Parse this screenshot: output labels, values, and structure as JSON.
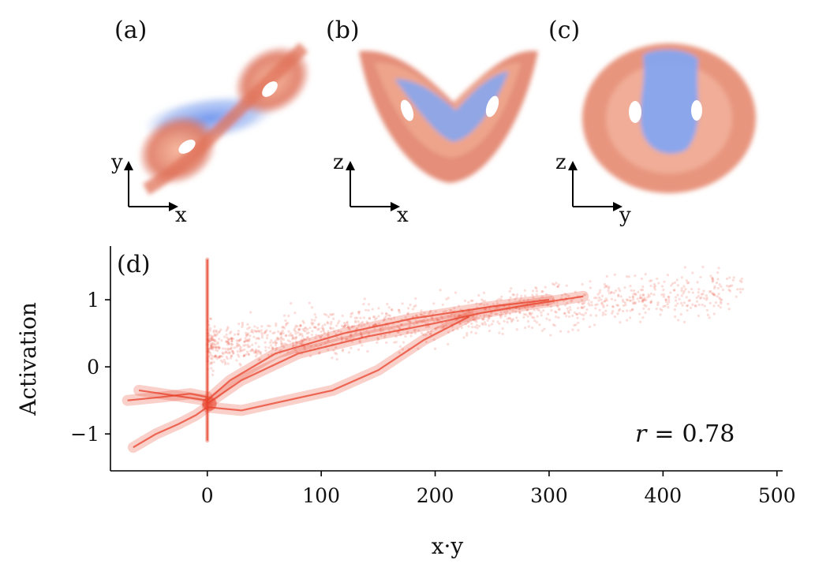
{
  "chart_data": [
    {
      "type": "scatter",
      "panel": "(a)",
      "title": "",
      "axes_arrows": {
        "horizontal": "x",
        "vertical": "y"
      },
      "colormap": "coolwarm (blue = low activation, red = high activation)",
      "description_of_marks": "Lorenz attractor projected on x-y plane, two lobes, colored by activation"
    },
    {
      "type": "scatter",
      "panel": "(b)",
      "title": "",
      "axes_arrows": {
        "horizontal": "x",
        "vertical": "z"
      },
      "colormap": "coolwarm",
      "description_of_marks": "Lorenz attractor projected on x-z plane (butterfly shape)"
    },
    {
      "type": "scatter",
      "panel": "(c)",
      "title": "",
      "axes_arrows": {
        "horizontal": "y",
        "vertical": "z"
      },
      "colormap": "coolwarm",
      "description_of_marks": "Lorenz attractor projected on y-z plane"
    },
    {
      "type": "scatter",
      "panel": "(d)",
      "title": "",
      "xlabel": "x·y",
      "ylabel": "Activation",
      "xlim": [
        -85,
        505
      ],
      "ylim": [
        -1.55,
        1.8
      ],
      "xticks": [
        0,
        100,
        200,
        300,
        400,
        500
      ],
      "yticks": [
        -1,
        0,
        1
      ],
      "xtick_labels": [
        "0",
        "100",
        "200",
        "300",
        "400",
        "500"
      ],
      "ytick_labels": [
        "−1",
        "0",
        "1"
      ],
      "annotation": {
        "var": "r",
        "eq": "=",
        "value": "0.78"
      },
      "correlation_r": 0.78,
      "color": "#e8422a",
      "curves": [
        {
          "name": "upper-branch",
          "x": [
            -60,
            -20,
            0,
            20,
            60,
            120,
            180,
            250,
            300
          ],
          "y": [
            -0.35,
            -0.45,
            -0.5,
            -0.2,
            0.2,
            0.5,
            0.72,
            0.9,
            1.0
          ]
        },
        {
          "name": "middle-branch",
          "x": [
            0,
            30,
            80,
            140,
            200,
            240,
            280,
            330
          ],
          "y": [
            -0.55,
            -0.2,
            0.2,
            0.45,
            0.65,
            0.8,
            0.92,
            1.05
          ]
        },
        {
          "name": "lower-branch",
          "x": [
            0,
            30,
            70,
            110,
            150,
            190,
            230
          ],
          "y": [
            -0.6,
            -0.65,
            -0.5,
            -0.35,
            -0.05,
            0.4,
            0.75
          ]
        },
        {
          "name": "left-tail",
          "x": [
            -65,
            -45,
            -25,
            -10,
            0
          ],
          "y": [
            -1.2,
            -1.0,
            -0.85,
            -0.72,
            -0.6
          ]
        },
        {
          "name": "left-tail-upper",
          "x": [
            -70,
            -40,
            -15,
            0
          ],
          "y": [
            -0.5,
            -0.45,
            -0.4,
            -0.45
          ]
        },
        {
          "name": "spike",
          "x": [
            0,
            0
          ],
          "y": [
            -1.1,
            1.6
          ]
        }
      ],
      "cloud": {
        "x_range": [
          0,
          470
        ],
        "y_center_at": [
          [
            0,
            0.3
          ],
          [
            150,
            0.6
          ],
          [
            300,
            0.9
          ],
          [
            450,
            1.1
          ]
        ],
        "spread": 0.45
      }
    }
  ],
  "labels": {
    "panel_a": "(a)",
    "panel_b": "(b)",
    "panel_c": "(c)",
    "panel_d": "(d)",
    "a_h": "x",
    "a_v": "y",
    "b_h": "x",
    "b_v": "z",
    "c_h": "y",
    "c_v": "z"
  },
  "colors": {
    "red": "#d6533b",
    "salmon": "#ef9c82",
    "blue": "#7b9ef0",
    "lightblue": "#b9cdf5",
    "scatter": "#e8422a"
  }
}
